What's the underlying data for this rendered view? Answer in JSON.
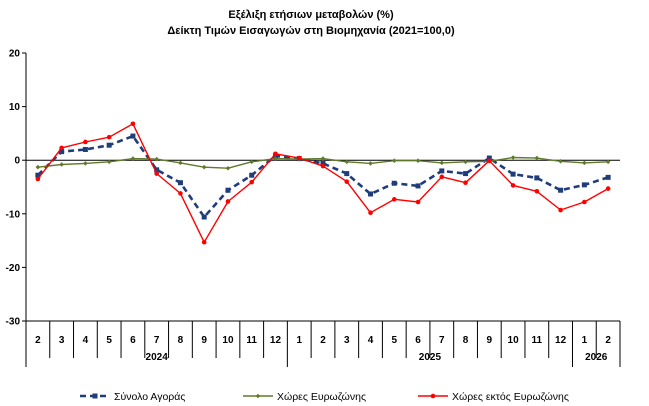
{
  "chart_data": {
    "type": "line",
    "title": "Εξέλιξη ετήσιων μεταβολών (%)",
    "subtitle": "Δείκτη Τιμών Εισαγωγών στη Βιομηχανία (2021=100,0)",
    "xlabel": "",
    "ylabel": "",
    "ylim": [
      -30,
      20
    ],
    "yticks": [
      "20",
      "10",
      "0",
      "-10",
      "-20",
      "-30"
    ],
    "grid": false,
    "legend_position": "bottom",
    "categories": [
      "2",
      "3",
      "4",
      "5",
      "6",
      "7",
      "8",
      "9",
      "10",
      "11",
      "12",
      "1",
      "2",
      "3",
      "4",
      "5",
      "6",
      "7",
      "8",
      "9",
      "10",
      "11",
      "12",
      "1",
      "2"
    ],
    "year_groups": [
      {
        "label": "2024",
        "start": 0,
        "end": 10
      },
      {
        "label": "2025",
        "start": 11,
        "end": 22
      },
      {
        "label": "2026",
        "start": 23,
        "end": 24
      }
    ],
    "series": [
      {
        "name": "Σύνολο Αγοράς",
        "color": "#1f3d7a",
        "style": "dashed-square",
        "values": [
          -2.8,
          1.6,
          2.0,
          2.8,
          4.5,
          -1.8,
          -4.2,
          -10.6,
          -5.6,
          -2.8,
          0.8,
          0.3,
          -0.6,
          -2.5,
          -6.3,
          -4.3,
          -4.8,
          -2.0,
          -2.5,
          0.4,
          -2.6,
          -3.3,
          -5.6,
          -4.6,
          -3.2
        ]
      },
      {
        "name": "Χώρες Ευρωζώνης",
        "color": "#5f7a2a",
        "style": "solid-diamond",
        "values": [
          -1.3,
          -0.8,
          -0.6,
          -0.3,
          0.3,
          0.2,
          -0.5,
          -1.3,
          -1.5,
          -0.3,
          0.3,
          0.2,
          0.3,
          -0.3,
          -0.6,
          -0.1,
          -0.1,
          -0.5,
          -0.3,
          -0.2,
          0.5,
          0.4,
          -0.2,
          -0.5,
          -0.3
        ]
      },
      {
        "name": "Χώρες εκτός Ευρωζώνης",
        "color": "#ff0000",
        "style": "solid-circle",
        "values": [
          -3.5,
          2.3,
          3.4,
          4.3,
          6.8,
          -2.5,
          -6.2,
          -15.3,
          -7.7,
          -4.1,
          1.2,
          0.4,
          -1.1,
          -4.0,
          -9.8,
          -7.3,
          -7.8,
          -3.1,
          -4.2,
          -0.1,
          -4.7,
          -5.8,
          -9.3,
          -7.8,
          -5.3
        ]
      }
    ]
  }
}
